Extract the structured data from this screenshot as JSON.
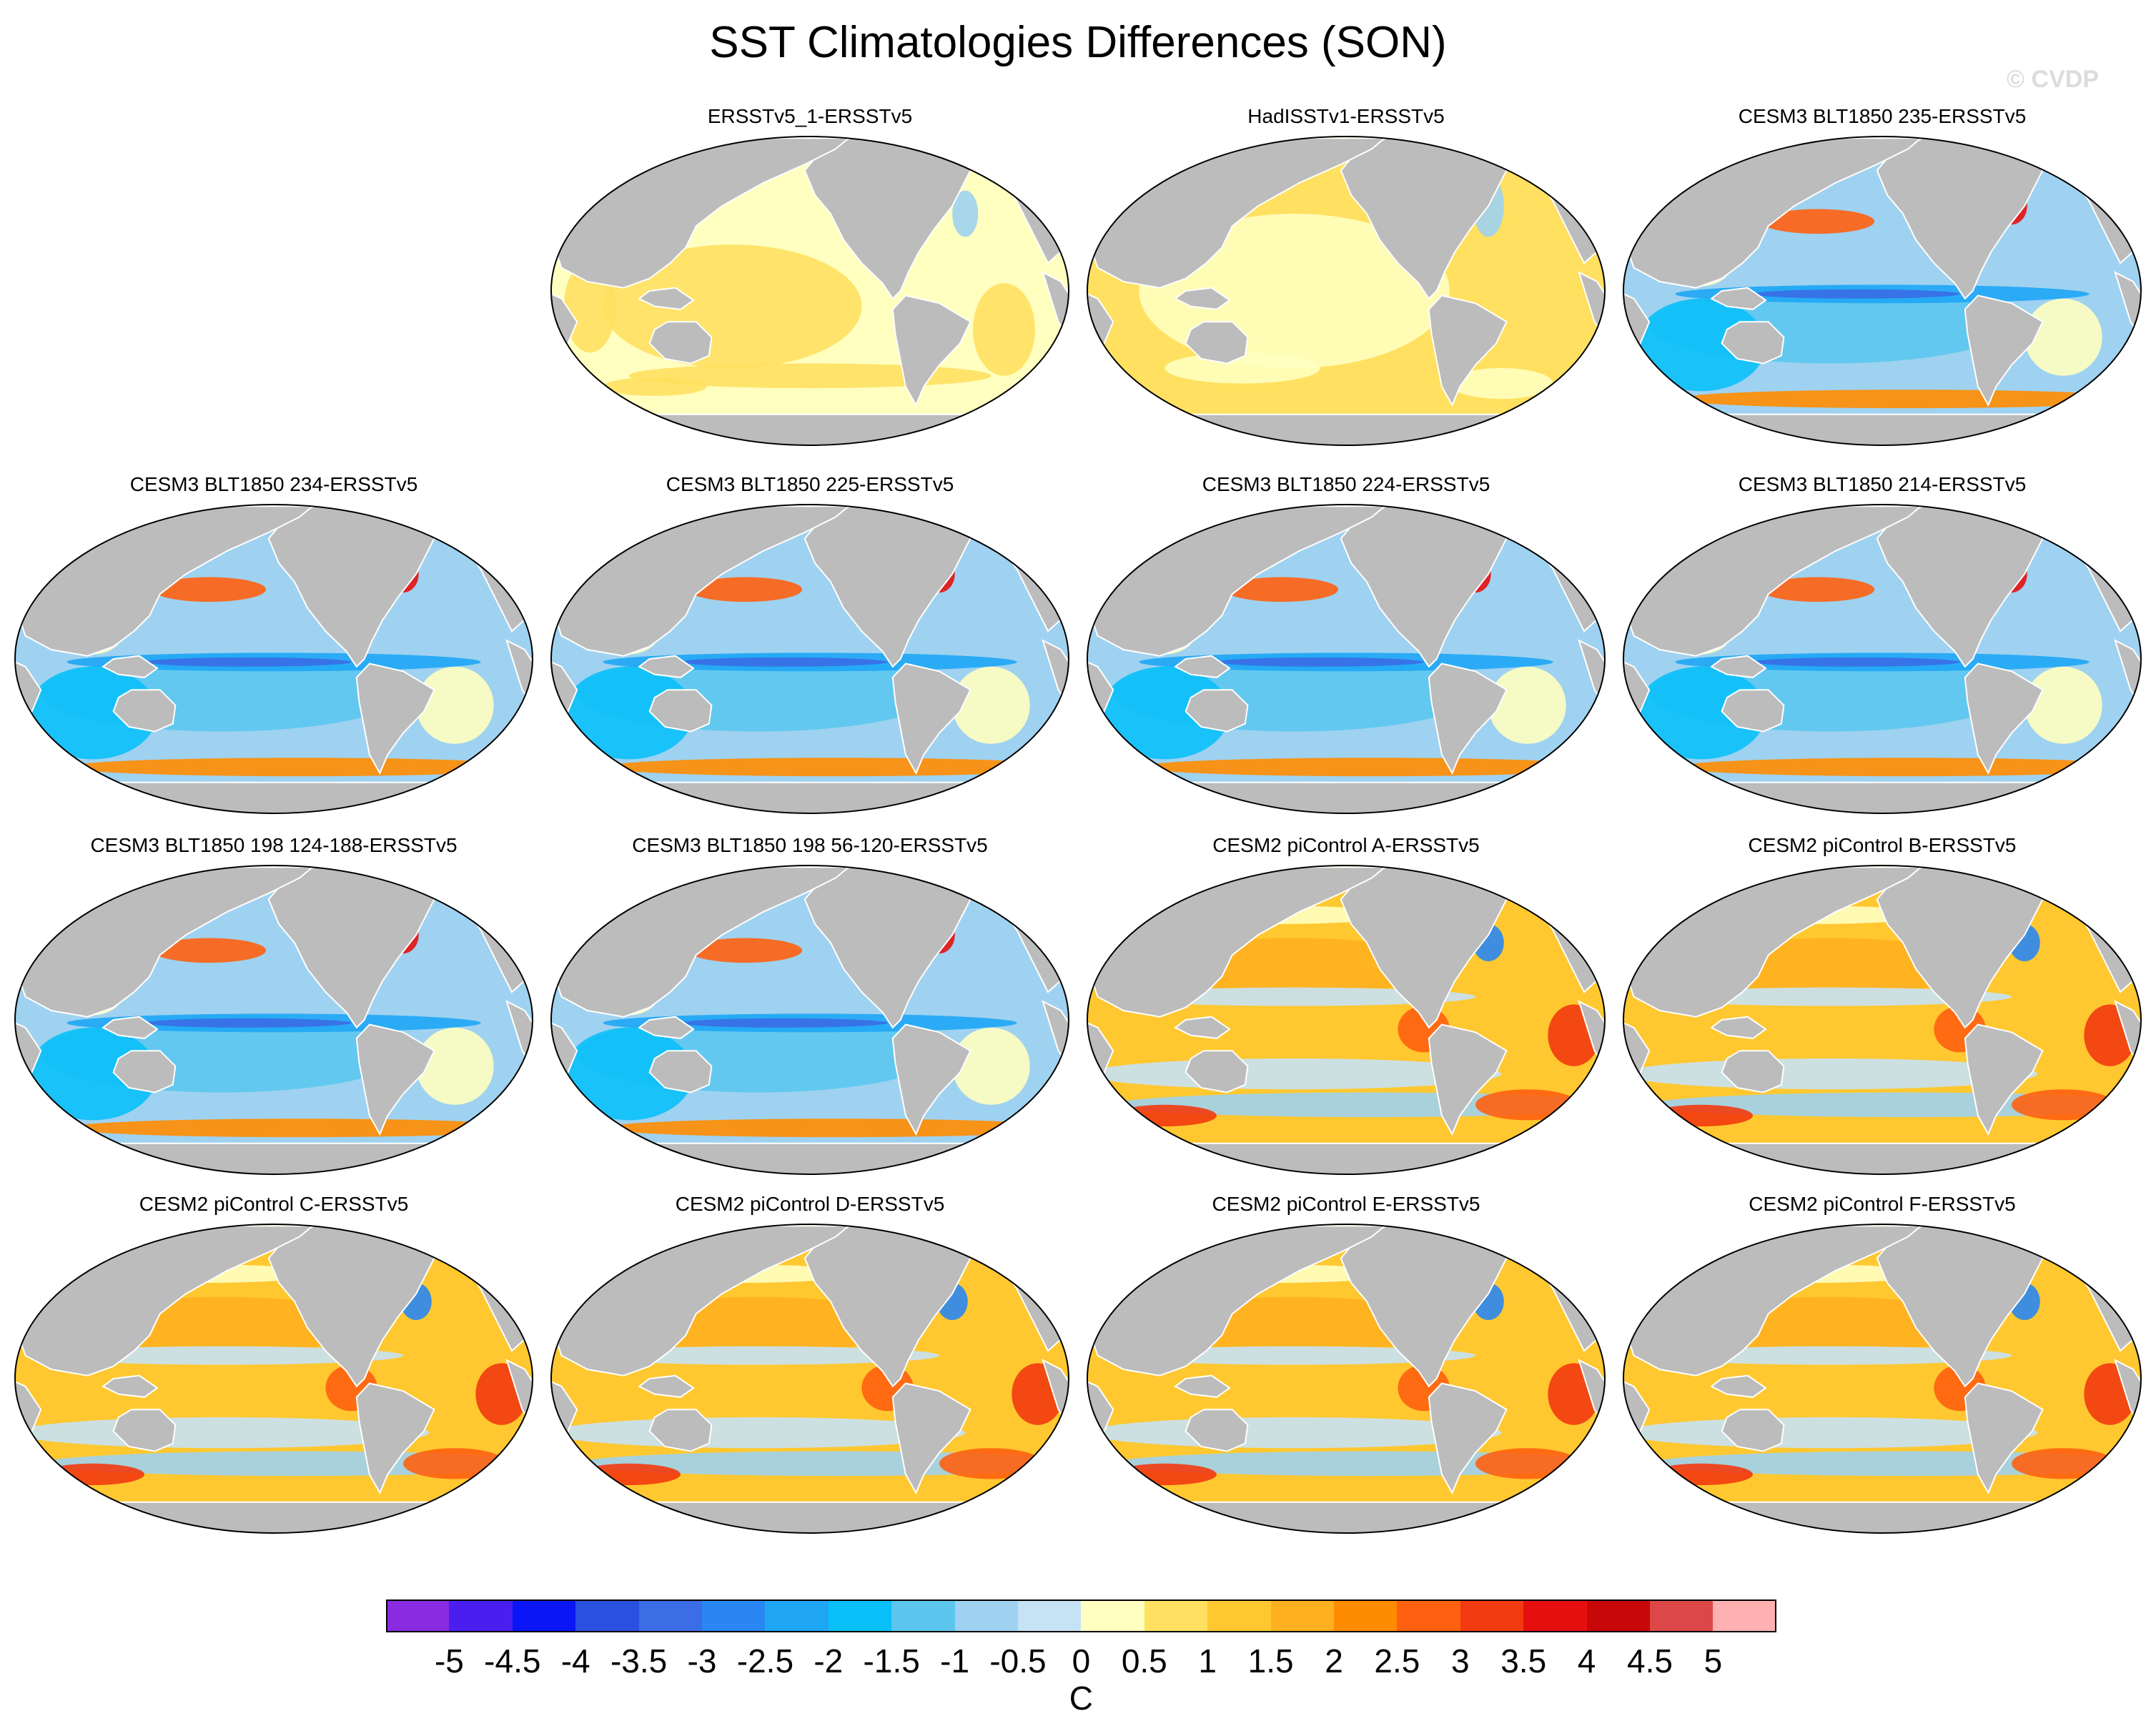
{
  "title": "SST Climatologies Differences (SON)",
  "watermark": "© CVDP",
  "panels": [
    {
      "title": "ERSSTv5_1-ERSSTv5",
      "style": "warm-light"
    },
    {
      "title": "HadISSTv1-ERSSTv5",
      "style": "warm-light2"
    },
    {
      "title": "CESM3 BLT1850 235-ERSSTv5",
      "style": "cool"
    },
    {
      "title": "CESM3 BLT1850 234-ERSSTv5",
      "style": "cool"
    },
    {
      "title": "CESM3 BLT1850 225-ERSSTv5",
      "style": "cool"
    },
    {
      "title": "CESM3 BLT1850 224-ERSSTv5",
      "style": "cool"
    },
    {
      "title": "CESM3 BLT1850 214-ERSSTv5",
      "style": "cool"
    },
    {
      "title": "CESM3 BLT1850 198 124-188-ERSSTv5",
      "style": "cool"
    },
    {
      "title": "CESM3 BLT1850 198 56-120-ERSSTv5",
      "style": "cool"
    },
    {
      "title": "CESM2 piControl A-ERSSTv5",
      "style": "warm"
    },
    {
      "title": "CESM2 piControl B-ERSSTv5",
      "style": "warm"
    },
    {
      "title": "CESM2 piControl C-ERSSTv5",
      "style": "warm"
    },
    {
      "title": "CESM2 piControl D-ERSSTv5",
      "style": "warm"
    },
    {
      "title": "CESM2 piControl E-ERSSTv5",
      "style": "warm"
    },
    {
      "title": "CESM2 piControl F-ERSSTv5",
      "style": "warm"
    }
  ],
  "colorbar": {
    "colors": [
      "#8a2be2",
      "#4b1ef0",
      "#0a16f5",
      "#2a50e0",
      "#3a6de6",
      "#2a86f2",
      "#1ea6f5",
      "#0ac0f8",
      "#5cc6ee",
      "#9fd2f0",
      "#c6e2f5",
      "#ffffc0",
      "#ffe060",
      "#ffc830",
      "#ffb020",
      "#ff8c00",
      "#ff6010",
      "#f23a10",
      "#e60f0f",
      "#c80808",
      "#dc4848",
      "#ffb0b0"
    ],
    "labels": [
      "-5",
      "-4.5",
      "-4",
      "-3.5",
      "-3",
      "-2.5",
      "-2",
      "-1.5",
      "-1",
      "-0.5",
      "0",
      "0.5",
      "1",
      "1.5",
      "2",
      "2.5",
      "3",
      "3.5",
      "4",
      "4.5",
      "5"
    ],
    "unit": "C"
  }
}
